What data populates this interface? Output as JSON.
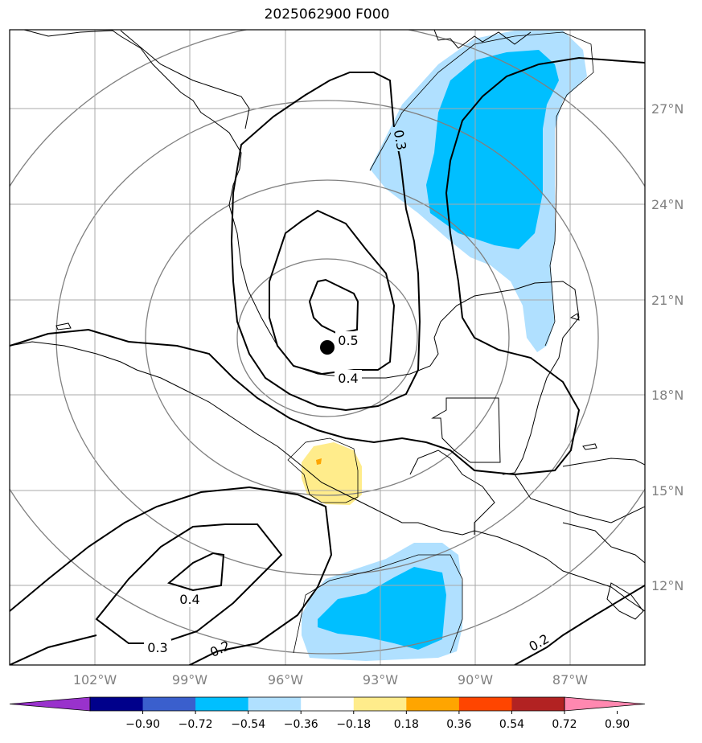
{
  "title": "2025062900 F000",
  "lon_ticks": [
    "102°W",
    "99°W",
    "96°W",
    "93°W",
    "90°W",
    "87°W"
  ],
  "lat_ticks": [
    "27°N",
    "24°N",
    "21°N",
    "18°N",
    "15°N",
    "12°N"
  ],
  "contour_labels": [
    "0.3",
    "0.5",
    "0.4",
    "0.4",
    "0.3",
    "0.2",
    "0.2"
  ],
  "colorbar": {
    "ticks": [
      "−0.90",
      "−0.72",
      "−0.54",
      "−0.36",
      "−0.18",
      "0.18",
      "0.36",
      "0.54",
      "0.72",
      "0.90"
    ],
    "colors": [
      "#9932cc",
      "#00008b",
      "#3a5fcd",
      "#00bfff",
      "#b0e0ff",
      "#ffffff",
      "#ffec8b",
      "#ffa500",
      "#ff4500",
      "#b22222",
      "#ff88b0"
    ]
  }
}
